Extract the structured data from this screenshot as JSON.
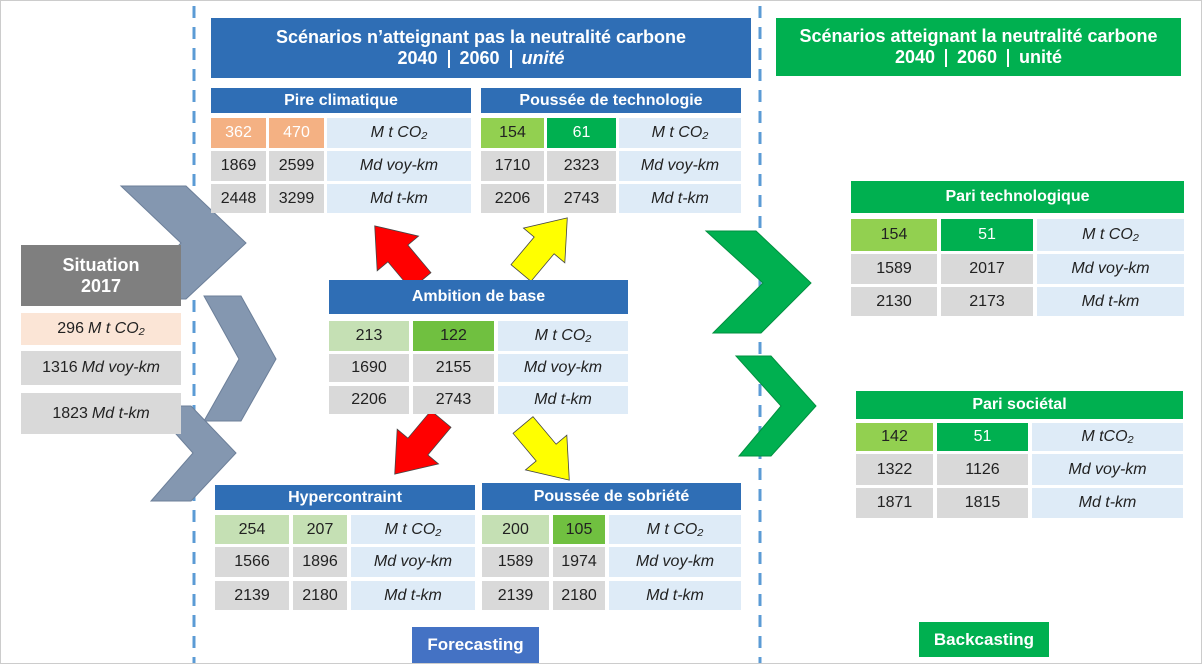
{
  "header_left": {
    "title": "Scénarios n’atteignant pas la neutralité carbone",
    "years": [
      "2040",
      "2060"
    ],
    "unit": "unité"
  },
  "header_right": {
    "title": "Scénarios atteignant la neutralité carbone",
    "years": [
      "2040",
      "2060"
    ],
    "unit": "unité"
  },
  "situation": {
    "title": [
      "Situation",
      "2017"
    ],
    "rows": [
      {
        "value": 296,
        "unit": "M t CO₂",
        "fill": "#fbe5d6"
      },
      {
        "value": 1316,
        "unit": "Md voy-km",
        "fill": "#d9d9d9"
      },
      {
        "value": 1823,
        "unit": "Md t-km",
        "fill": "#d9d9d9"
      }
    ]
  },
  "scenarios": [
    {
      "name": "Pire climatique",
      "rows": [
        {
          "values": [
            362,
            470
          ],
          "unit": "M t CO₂",
          "fills": [
            "#f4b183",
            "#f4b183"
          ]
        },
        {
          "values": [
            1869,
            2599
          ],
          "unit": "Md voy-km",
          "fills": [
            "#d9d9d9",
            "#d9d9d9"
          ]
        },
        {
          "values": [
            2448,
            3299
          ],
          "unit": "Md t-km",
          "fills": [
            "#d9d9d9",
            "#d9d9d9"
          ]
        }
      ]
    },
    {
      "name": "Poussée de technologie",
      "rows": [
        {
          "values": [
            154,
            61
          ],
          "unit": "M t CO₂",
          "fills": [
            "#92d050",
            "#00b050"
          ]
        },
        {
          "values": [
            1710,
            2323
          ],
          "unit": "Md voy-km",
          "fills": [
            "#d9d9d9",
            "#d9d9d9"
          ]
        },
        {
          "values": [
            2206,
            2743
          ],
          "unit": "Md t-km",
          "fills": [
            "#d9d9d9",
            "#d9d9d9"
          ]
        }
      ]
    },
    {
      "name": "Ambition de base",
      "rows": [
        {
          "values": [
            213,
            122
          ],
          "unit": "M t CO₂",
          "fills": [
            "#c5e0b4",
            "#70c040"
          ]
        },
        {
          "values": [
            1690,
            2155
          ],
          "unit": "Md voy-km",
          "fills": [
            "#d9d9d9",
            "#d9d9d9"
          ]
        },
        {
          "values": [
            2206,
            2743
          ],
          "unit": "Md t-km",
          "fills": [
            "#d9d9d9",
            "#d9d9d9"
          ]
        }
      ]
    },
    {
      "name": "Hypercontraint",
      "rows": [
        {
          "values": [
            254,
            207
          ],
          "unit": "M t CO₂",
          "fills": [
            "#c5e0b4",
            "#c5e0b4"
          ]
        },
        {
          "values": [
            1566,
            1896
          ],
          "unit": "Md voy-km",
          "fills": [
            "#d9d9d9",
            "#d9d9d9"
          ]
        },
        {
          "values": [
            2139,
            2180
          ],
          "unit": "Md t-km",
          "fills": [
            "#d9d9d9",
            "#d9d9d9"
          ]
        }
      ]
    },
    {
      "name": "Poussée de sobriété",
      "rows": [
        {
          "values": [
            200,
            105
          ],
          "unit": "M t CO₂",
          "fills": [
            "#c5e0b4",
            "#70c040"
          ]
        },
        {
          "values": [
            1589,
            1974
          ],
          "unit": "Md voy-km",
          "fills": [
            "#d9d9d9",
            "#d9d9d9"
          ]
        },
        {
          "values": [
            2139,
            2180
          ],
          "unit": "Md t-km",
          "fills": [
            "#d9d9d9",
            "#d9d9d9"
          ]
        }
      ]
    },
    {
      "name": "Pari technologique",
      "rows": [
        {
          "values": [
            154,
            51
          ],
          "unit": "M t CO₂",
          "fills": [
            "#92d050",
            "#00b050"
          ]
        },
        {
          "values": [
            1589,
            2017
          ],
          "unit": "Md voy-km",
          "fills": [
            "#d9d9d9",
            "#d9d9d9"
          ]
        },
        {
          "values": [
            2130,
            2173
          ],
          "unit": "Md t-km",
          "fills": [
            "#d9d9d9",
            "#d9d9d9"
          ]
        }
      ]
    },
    {
      "name": "Pari sociétal",
      "rows": [
        {
          "values": [
            142,
            51
          ],
          "unit": "M tCO₂",
          "fills": [
            "#92d050",
            "#00b050"
          ]
        },
        {
          "values": [
            1322,
            1126
          ],
          "unit": "Md voy-km",
          "fills": [
            "#d9d9d9",
            "#d9d9d9"
          ]
        },
        {
          "values": [
            1871,
            1815
          ],
          "unit": "Md t-km",
          "fills": [
            "#d9d9d9",
            "#d9d9d9"
          ]
        }
      ]
    }
  ],
  "labels": {
    "forecasting": "Forecasting",
    "backcasting": "Backcasting"
  }
}
